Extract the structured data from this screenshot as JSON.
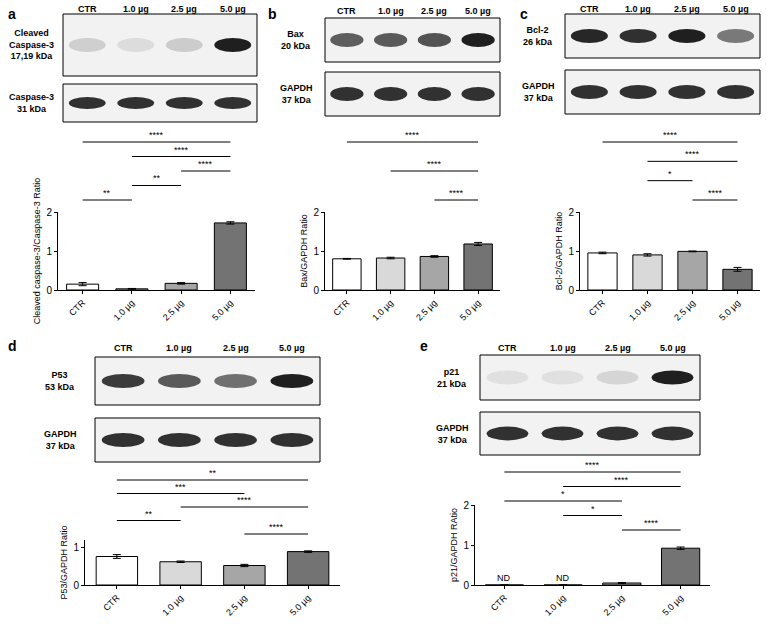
{
  "chart_data": [
    {
      "type": "bar",
      "title": "a",
      "ylabel": "Cleaved caspase-3/Caspase-3 Ratio",
      "categories": [
        "CTR",
        "1.0 µg",
        "2.5 µg",
        "5.0 µg"
      ],
      "values": [
        0.15,
        0.03,
        0.17,
        1.72
      ],
      "errors": [
        0.04,
        0.01,
        0.02,
        0.03
      ],
      "colors": [
        "#ffffff",
        "#d9d9d9",
        "#a6a6a6",
        "#737373"
      ],
      "ylim": [
        0,
        2
      ],
      "yticks": [
        0,
        1,
        2
      ],
      "grid": false,
      "significance": [
        {
          "from": "CTR",
          "to": "5.0 µg",
          "text": "****"
        },
        {
          "from": "1.0 µg",
          "to": "5.0 µg",
          "text": "****"
        },
        {
          "from": "2.5 µg",
          "to": "5.0 µg",
          "text": "****"
        },
        {
          "from": "1.0 µg",
          "to": "2.5 µg",
          "text": "**"
        },
        {
          "from": "CTR",
          "to": "1.0 µg",
          "text": "**"
        }
      ],
      "blot": {
        "lanes": [
          "CTR",
          "1.0 µg",
          "2.5 µg",
          "5.0 µg"
        ],
        "rows": [
          {
            "label": [
              "Cleaved",
              "Caspase-3",
              "17,19 kDa"
            ]
          },
          {
            "label": [
              "Caspase-3",
              "31 kDa"
            ]
          }
        ]
      }
    },
    {
      "type": "bar",
      "title": "b",
      "ylabel": "Bax/GAPDH Ratio",
      "categories": [
        "CTR",
        "1.0 µg",
        "2.5 µg",
        "5.0 µg"
      ],
      "values": [
        0.8,
        0.82,
        0.86,
        1.18
      ],
      "errors": [
        0.01,
        0.02,
        0.02,
        0.04
      ],
      "colors": [
        "#ffffff",
        "#d9d9d9",
        "#a6a6a6",
        "#737373"
      ],
      "ylim": [
        0,
        2
      ],
      "yticks": [
        0,
        1,
        2
      ],
      "grid": false,
      "significance": [
        {
          "from": "CTR",
          "to": "5.0 µg",
          "text": "****"
        },
        {
          "from": "1.0 µg",
          "to": "5.0 µg",
          "text": "****"
        },
        {
          "from": "2.5 µg",
          "to": "5.0 µg",
          "text": "****"
        }
      ],
      "blot": {
        "lanes": [
          "CTR",
          "1.0 µg",
          "2.5 µg",
          "5.0 µg"
        ],
        "rows": [
          {
            "label": [
              "Bax",
              "20 kDa"
            ]
          },
          {
            "label": [
              "GAPDH",
              "37 kDa"
            ]
          }
        ]
      }
    },
    {
      "type": "bar",
      "title": "c",
      "ylabel": "Bcl-2/GAPDH Ratio",
      "categories": [
        "CTR",
        "1.0 µg",
        "2.5 µg",
        "5.0 µg"
      ],
      "values": [
        0.95,
        0.9,
        0.99,
        0.53
      ],
      "errors": [
        0.02,
        0.03,
        0.01,
        0.05
      ],
      "colors": [
        "#ffffff",
        "#d9d9d9",
        "#a6a6a6",
        "#737373"
      ],
      "ylim": [
        0,
        2
      ],
      "yticks": [
        0,
        1,
        2
      ],
      "grid": false,
      "significance": [
        {
          "from": "CTR",
          "to": "5.0 µg",
          "text": "****"
        },
        {
          "from": "1.0 µg",
          "to": "5.0 µg",
          "text": "****"
        },
        {
          "from": "1.0 µg",
          "to": "2.5 µg",
          "text": "*"
        },
        {
          "from": "2.5 µg",
          "to": "5.0 µg",
          "text": "****"
        }
      ],
      "blot": {
        "lanes": [
          "CTR",
          "1.0 µg",
          "2.5 µg",
          "5.0 µg"
        ],
        "rows": [
          {
            "label": [
              "Bcl-2",
              "26 kDa"
            ]
          },
          {
            "label": [
              "GAPDH",
              "37 kDa"
            ]
          }
        ]
      }
    },
    {
      "type": "bar",
      "title": "d",
      "ylabel": "P53/GAPDH Ratio",
      "categories": [
        "CTR",
        "1.0 µg",
        "2.5 µg",
        "5.0 µg"
      ],
      "values": [
        0.76,
        0.62,
        0.52,
        0.89
      ],
      "errors": [
        0.05,
        0.02,
        0.03,
        0.02
      ],
      "colors": [
        "#ffffff",
        "#d9d9d9",
        "#a6a6a6",
        "#737373"
      ],
      "ylim": [
        0,
        1.2
      ],
      "yticks": [
        0,
        1
      ],
      "grid": false,
      "significance": [
        {
          "from": "CTR",
          "to": "5.0 µg",
          "text": "**"
        },
        {
          "from": "CTR",
          "to": "2.5 µg",
          "text": "***"
        },
        {
          "from": "1.0 µg",
          "to": "5.0 µg",
          "text": "****"
        },
        {
          "from": "CTR",
          "to": "1.0 µg",
          "text": "**"
        },
        {
          "from": "2.5 µg",
          "to": "5.0 µg",
          "text": "****"
        }
      ],
      "blot": {
        "lanes": [
          "CTR",
          "1.0 µg",
          "2.5 µg",
          "5.0 µg"
        ],
        "rows": [
          {
            "label": [
              "P53",
              "53 kDa"
            ]
          },
          {
            "label": [
              "GAPDH",
              "37 kDa"
            ]
          }
        ]
      }
    },
    {
      "type": "bar",
      "title": "e",
      "ylabel": "p21/GAPDH RAtio",
      "categories": [
        "CTR",
        "1.0 µg",
        "2.5 µg",
        "5.0 µg"
      ],
      "values": [
        0,
        0,
        0.05,
        0.92
      ],
      "errors": [
        0,
        0,
        0.01,
        0.03
      ],
      "colors": [
        "#ffffff",
        "#d9d9d9",
        "#a6a6a6",
        "#737373"
      ],
      "ylim": [
        0,
        2
      ],
      "yticks": [
        0,
        1,
        2
      ],
      "grid": false,
      "annotations": [
        {
          "category": "CTR",
          "text": "ND"
        },
        {
          "category": "1.0 µg",
          "text": "ND"
        }
      ],
      "significance": [
        {
          "from": "CTR",
          "to": "5.0 µg",
          "text": "****"
        },
        {
          "from": "1.0 µg",
          "to": "5.0 µg",
          "text": "****"
        },
        {
          "from": "CTR",
          "to": "2.5 µg",
          "text": "*"
        },
        {
          "from": "1.0 µg",
          "to": "2.5 µg",
          "text": "*"
        },
        {
          "from": "2.5 µg",
          "to": "5.0 µg",
          "text": "****"
        }
      ],
      "blot": {
        "lanes": [
          "CTR",
          "1.0 µg",
          "2.5 µg",
          "5.0 µg"
        ],
        "rows": [
          {
            "label": [
              "p21",
              "21 kDa"
            ]
          },
          {
            "label": [
              "GAPDH",
              "37 kDa"
            ]
          }
        ]
      }
    }
  ]
}
